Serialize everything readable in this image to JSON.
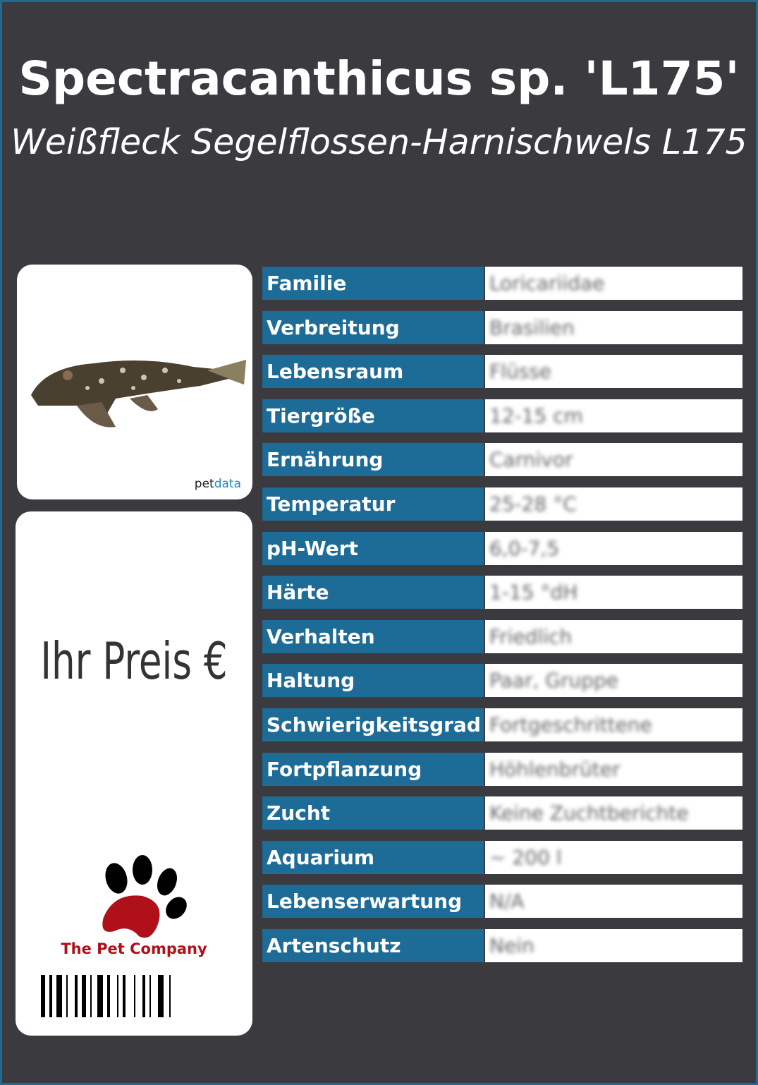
{
  "header": {
    "title": "Spectracanthicus sp. 'L175'",
    "subtitle": "Weißfleck Segelflossen-Harnischwels L175"
  },
  "image_card": {
    "logo": [
      "pet",
      "data"
    ]
  },
  "price_card": {
    "price_label": "Ihr Preis €",
    "brand": "The Pet Company"
  },
  "table": {
    "rows": [
      [
        "Familie",
        "Loricariidae"
      ],
      [
        "Verbreitung",
        "Brasilien"
      ],
      [
        "Lebensraum",
        "Flüsse"
      ],
      [
        "Tiergröße",
        "12-15 cm"
      ],
      [
        "Ernährung",
        "Carnivor"
      ],
      [
        "Temperatur",
        "25-28 °C"
      ],
      [
        "pH-Wert",
        "6,0-7,5"
      ],
      [
        "Härte",
        "1-15 °dH"
      ],
      [
        "Verhalten",
        "Friedlich"
      ],
      [
        "Haltung",
        "Paar, Gruppe"
      ],
      [
        "Schwierigkeitsgrad",
        "Fortgeschrittene"
      ],
      [
        "Fortpflanzung",
        "Höhlenbrüter"
      ],
      [
        "Zucht",
        "Keine Zuchtberichte"
      ],
      [
        "Aquarium",
        "~ 200 l"
      ],
      [
        "Lebenserwartung",
        "N/A"
      ],
      [
        "Artenschutz",
        "Nein"
      ]
    ]
  }
}
